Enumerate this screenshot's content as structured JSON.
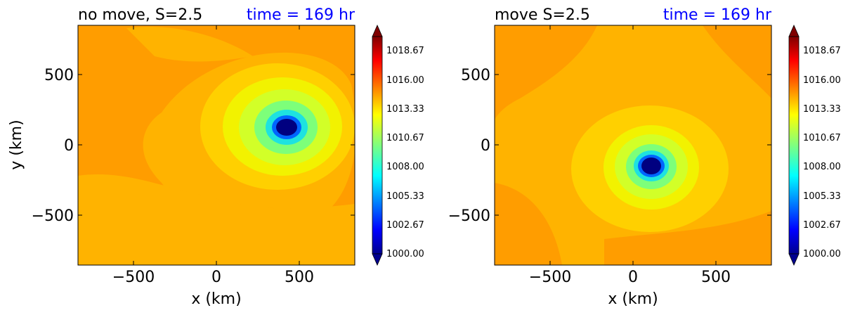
{
  "chart_data": [
    {
      "type": "heatmap",
      "subtype": "filled-contour",
      "title": "no move, S=2.5",
      "time_label": "time = 169 hr",
      "time_color": "#0000ff",
      "xlabel": "x (km)",
      "ylabel": "y (km)",
      "xlim": [
        -850,
        850
      ],
      "ylim": [
        -850,
        850
      ],
      "xticks": [
        -500,
        0,
        500
      ],
      "yticks": [
        -500,
        0,
        500
      ],
      "xtick_labels": [
        "−500",
        "0",
        "500"
      ],
      "ytick_labels": [
        "−500",
        "0",
        "500"
      ],
      "colorbar": {
        "range": [
          1000,
          1020
        ],
        "tick_labels": [
          "1000.00",
          "1002.67",
          "1005.33",
          "1008.00",
          "1010.67",
          "1013.33",
          "1016.00",
          "1018.67"
        ],
        "extend": "both"
      },
      "background_value": 1015.5,
      "center_x": 420,
      "center_y": 120,
      "center_min_value": 1000
    },
    {
      "type": "heatmap",
      "subtype": "filled-contour",
      "title": "move S=2.5",
      "time_label": "time = 169 hr",
      "time_color": "#0000ff",
      "xlabel": "x (km)",
      "ylabel": "",
      "xlim": [
        -850,
        850
      ],
      "ylim": [
        -850,
        850
      ],
      "xticks": [
        -500,
        0,
        500
      ],
      "yticks": [
        -500,
        0,
        500
      ],
      "xtick_labels": [
        "−500",
        "0",
        "500"
      ],
      "ytick_labels": [
        "−500",
        "0",
        "500"
      ],
      "colorbar": {
        "range": [
          1000,
          1020
        ],
        "tick_labels": [
          "1000.00",
          "1002.67",
          "1005.33",
          "1008.00",
          "1010.67",
          "1013.33",
          "1016.00",
          "1018.67"
        ],
        "extend": "both"
      },
      "background_value": 1015.0,
      "center_x": 120,
      "center_y": -150,
      "center_min_value": 1000
    }
  ],
  "colors": {
    "background_field": "#ff9d00",
    "outer_ring": "#ffb300",
    "ring_yellow_orange": "#ffd000",
    "ring_yellow": "#f2f200",
    "ring_lime": "#d2ff28",
    "ring_green": "#7dff7a",
    "ring_cyan": "#1ee2e0",
    "ring_blue": "#0066ff",
    "core": "#000080"
  }
}
